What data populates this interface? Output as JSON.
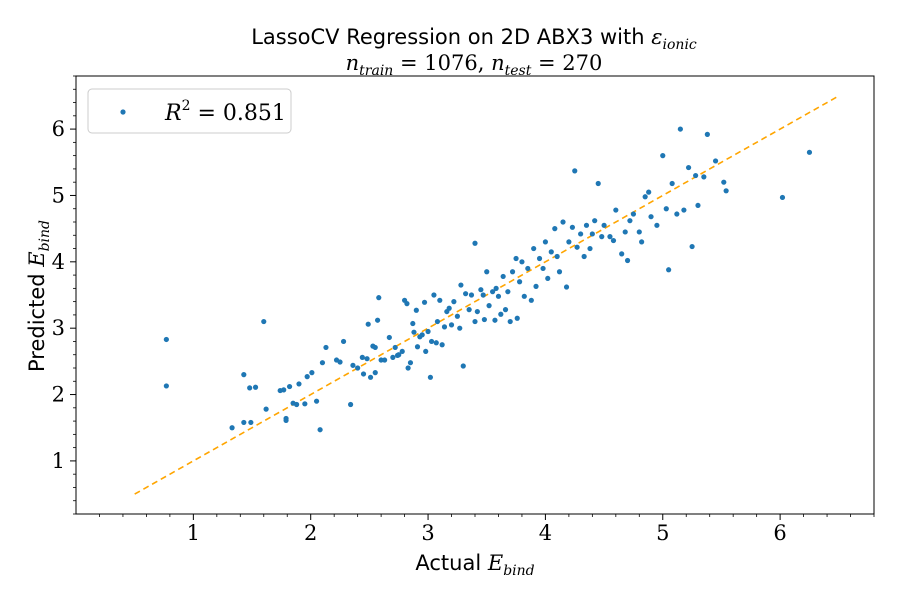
{
  "chart_data": {
    "type": "scatter",
    "title": "LassoCV Regression on 2D ABX3 with ε_ionic",
    "title_prefix": "LassoCV Regression on 2D ABX3 with ",
    "title_symbol": "ε",
    "title_symbol_sub": "ionic",
    "subtitle": "n_train = 1076, n_test = 270",
    "subtitle_parts": {
      "n1": "n",
      "n1_sub": "train",
      "eq1": " = 1076, ",
      "n2": "n",
      "n2_sub": "test",
      "eq2": " = 270"
    },
    "xlabel": "Actual E_bind",
    "xlabel_parts": {
      "prefix": "Actual ",
      "sym": "E",
      "sub": "bind"
    },
    "ylabel": "Predicted E_bind",
    "ylabel_parts": {
      "prefix": "Predicted ",
      "sym": "E",
      "sub": "bind"
    },
    "xlim": [
      0.0,
      6.8
    ],
    "ylim": [
      0.2,
      6.8
    ],
    "xticks": [
      1,
      2,
      3,
      4,
      5,
      6
    ],
    "yticks": [
      1,
      2,
      3,
      4,
      5,
      6
    ],
    "grid": false,
    "legend": {
      "placement": "top-left",
      "entries": [
        {
          "name": "R² = 0.851",
          "sym": "R",
          "sup": "2",
          "rest": " = 0.851"
        }
      ]
    },
    "reference_line": {
      "style": "dashed",
      "color": "#ffa500",
      "x": [
        0.5,
        6.5
      ],
      "y": [
        0.5,
        6.5
      ]
    },
    "series": [
      {
        "name": "R² = 0.851",
        "color": "#1f77b4",
        "points": [
          [
            0.77,
            2.83
          ],
          [
            0.77,
            2.13
          ],
          [
            1.33,
            1.5
          ],
          [
            1.43,
            1.58
          ],
          [
            1.43,
            2.3
          ],
          [
            1.48,
            2.1
          ],
          [
            1.49,
            1.58
          ],
          [
            1.53,
            2.11
          ],
          [
            1.6,
            3.1
          ],
          [
            1.62,
            1.78
          ],
          [
            1.74,
            2.06
          ],
          [
            1.77,
            2.07
          ],
          [
            1.79,
            1.64
          ],
          [
            1.79,
            1.61
          ],
          [
            1.82,
            2.12
          ],
          [
            1.85,
            1.87
          ],
          [
            1.88,
            1.85
          ],
          [
            1.9,
            2.16
          ],
          [
            1.95,
            1.86
          ],
          [
            1.97,
            2.27
          ],
          [
            2.01,
            2.33
          ],
          [
            2.05,
            1.9
          ],
          [
            2.08,
            1.47
          ],
          [
            2.1,
            2.48
          ],
          [
            2.13,
            2.71
          ],
          [
            2.22,
            2.52
          ],
          [
            2.25,
            2.49
          ],
          [
            2.28,
            2.8
          ],
          [
            2.34,
            1.85
          ],
          [
            2.36,
            2.44
          ],
          [
            2.4,
            2.4
          ],
          [
            2.44,
            2.56
          ],
          [
            2.45,
            2.31
          ],
          [
            2.48,
            2.54
          ],
          [
            2.49,
            3.06
          ],
          [
            2.51,
            2.26
          ],
          [
            2.53,
            2.73
          ],
          [
            2.55,
            2.71
          ],
          [
            2.55,
            2.33
          ],
          [
            2.57,
            3.12
          ],
          [
            2.58,
            3.46
          ],
          [
            2.6,
            2.52
          ],
          [
            2.63,
            2.52
          ],
          [
            2.67,
            2.86
          ],
          [
            2.7,
            2.56
          ],
          [
            2.72,
            2.71
          ],
          [
            2.74,
            2.59
          ],
          [
            2.75,
            2.6
          ],
          [
            2.78,
            2.65
          ],
          [
            2.8,
            3.42
          ],
          [
            2.82,
            3.37
          ],
          [
            2.83,
            2.4
          ],
          [
            2.85,
            2.48
          ],
          [
            2.87,
            3.07
          ],
          [
            2.88,
            2.94
          ],
          [
            2.9,
            3.27
          ],
          [
            2.91,
            2.72
          ],
          [
            2.93,
            2.87
          ],
          [
            2.95,
            2.9
          ],
          [
            2.97,
            3.39
          ],
          [
            2.98,
            2.65
          ],
          [
            3.0,
            2.95
          ],
          [
            3.02,
            2.26
          ],
          [
            3.03,
            2.8
          ],
          [
            3.05,
            3.5
          ],
          [
            3.07,
            2.78
          ],
          [
            3.08,
            3.1
          ],
          [
            3.1,
            3.42
          ],
          [
            3.12,
            2.75
          ],
          [
            3.14,
            3.02
          ],
          [
            3.16,
            3.25
          ],
          [
            3.18,
            3.3
          ],
          [
            3.2,
            3.05
          ],
          [
            3.22,
            3.4
          ],
          [
            3.25,
            3.18
          ],
          [
            3.27,
            3.0
          ],
          [
            3.28,
            3.65
          ],
          [
            3.3,
            2.43
          ],
          [
            3.32,
            3.52
          ],
          [
            3.35,
            3.28
          ],
          [
            3.37,
            3.5
          ],
          [
            3.4,
            3.1
          ],
          [
            3.4,
            4.28
          ],
          [
            3.42,
            3.25
          ],
          [
            3.45,
            3.58
          ],
          [
            3.47,
            3.5
          ],
          [
            3.48,
            3.13
          ],
          [
            3.5,
            3.85
          ],
          [
            3.52,
            3.34
          ],
          [
            3.55,
            3.55
          ],
          [
            3.57,
            3.12
          ],
          [
            3.58,
            3.6
          ],
          [
            3.6,
            3.48
          ],
          [
            3.62,
            3.21
          ],
          [
            3.64,
            3.78
          ],
          [
            3.66,
            3.28
          ],
          [
            3.68,
            3.55
          ],
          [
            3.7,
            3.1
          ],
          [
            3.72,
            3.85
          ],
          [
            3.75,
            4.05
          ],
          [
            3.76,
            3.15
          ],
          [
            3.78,
            3.7
          ],
          [
            3.8,
            4.0
          ],
          [
            3.82,
            3.48
          ],
          [
            3.85,
            3.9
          ],
          [
            3.88,
            3.42
          ],
          [
            3.9,
            4.2
          ],
          [
            3.92,
            3.63
          ],
          [
            3.95,
            4.05
          ],
          [
            3.98,
            3.9
          ],
          [
            4.0,
            4.3
          ],
          [
            4.02,
            3.75
          ],
          [
            4.05,
            4.15
          ],
          [
            4.08,
            4.5
          ],
          [
            4.1,
            4.08
          ],
          [
            4.12,
            3.85
          ],
          [
            4.15,
            4.6
          ],
          [
            4.18,
            3.62
          ],
          [
            4.2,
            4.3
          ],
          [
            4.23,
            4.52
          ],
          [
            4.25,
            5.37
          ],
          [
            4.27,
            4.22
          ],
          [
            4.3,
            4.42
          ],
          [
            4.33,
            4.08
          ],
          [
            4.35,
            4.55
          ],
          [
            4.38,
            4.2
          ],
          [
            4.4,
            4.42
          ],
          [
            4.42,
            4.62
          ],
          [
            4.45,
            5.18
          ],
          [
            4.48,
            4.38
          ],
          [
            4.5,
            4.55
          ],
          [
            4.55,
            4.38
          ],
          [
            4.58,
            4.32
          ],
          [
            4.6,
            4.78
          ],
          [
            4.65,
            4.12
          ],
          [
            4.68,
            4.45
          ],
          [
            4.7,
            4.02
          ],
          [
            4.72,
            4.62
          ],
          [
            4.75,
            4.72
          ],
          [
            4.8,
            4.45
          ],
          [
            4.82,
            4.3
          ],
          [
            4.85,
            4.98
          ],
          [
            4.88,
            5.05
          ],
          [
            4.9,
            4.68
          ],
          [
            4.95,
            4.55
          ],
          [
            5.0,
            5.6
          ],
          [
            5.03,
            4.8
          ],
          [
            5.05,
            3.88
          ],
          [
            5.08,
            5.18
          ],
          [
            5.12,
            4.72
          ],
          [
            5.15,
            6.0
          ],
          [
            5.18,
            4.78
          ],
          [
            5.22,
            5.42
          ],
          [
            5.25,
            4.23
          ],
          [
            5.28,
            5.3
          ],
          [
            5.3,
            4.85
          ],
          [
            5.35,
            5.28
          ],
          [
            5.38,
            5.92
          ],
          [
            5.45,
            5.52
          ],
          [
            5.52,
            5.2
          ],
          [
            5.54,
            5.07
          ],
          [
            6.02,
            4.97
          ],
          [
            6.25,
            5.65
          ]
        ]
      }
    ]
  }
}
